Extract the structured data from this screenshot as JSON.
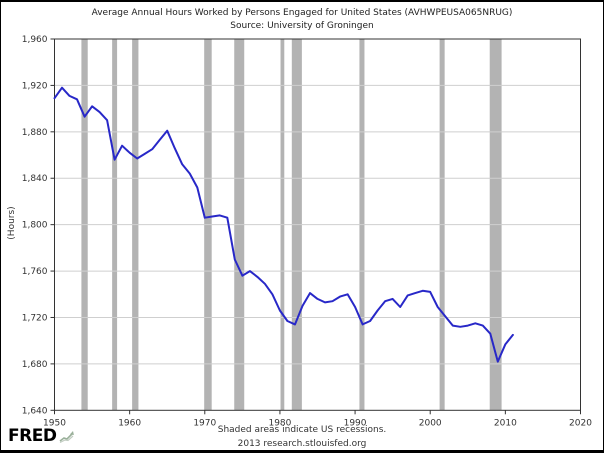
{
  "header": {
    "title": "Average Annual Hours Worked by Persons Engaged for United States (AVHWPEUSA065NRUG)",
    "source": "Source: University of Groningen"
  },
  "footer": {
    "note": "Shaded areas indicate US recessions.",
    "attribution": "2013 research.stlouisfed.org",
    "logo": "FRED",
    "logo_icon": "line-chart-icon"
  },
  "chart_data": {
    "type": "line",
    "title": "Average Annual Hours Worked by Persons Engaged for United States (AVHWPEUSA065NRUG)",
    "subtitle": "Source: University of Groningen",
    "xlabel": "",
    "ylabel": "(Hours)",
    "xlim": [
      1950,
      2020
    ],
    "ylim": [
      1640,
      1960
    ],
    "x_ticks": [
      1950,
      1960,
      1970,
      1980,
      1990,
      2000,
      2010,
      2020
    ],
    "y_ticks": [
      1640,
      1680,
      1720,
      1760,
      1800,
      1840,
      1880,
      1920,
      1960
    ],
    "grid": "horizontal",
    "legend_position": "none",
    "line_color": "#2828c8",
    "recession_color": "#b3b3b3",
    "gridline_color": "#cfcfcf",
    "frame_color": "#333333",
    "tick_label_color": "#333333",
    "recessions": [
      [
        1953.58,
        1954.42
      ],
      [
        1957.67,
        1958.33
      ],
      [
        1960.33,
        1961.17
      ],
      [
        1969.92,
        1970.92
      ],
      [
        1973.92,
        1975.25
      ],
      [
        1980.08,
        1980.58
      ],
      [
        1981.58,
        1982.92
      ],
      [
        1990.58,
        1991.25
      ],
      [
        2001.25,
        2001.92
      ],
      [
        2007.92,
        2009.5
      ]
    ],
    "series": [
      {
        "name": "AVHWPEUSA065NRUG",
        "x_start": 1950,
        "values": [
          1909,
          1918,
          1911,
          1908,
          1893,
          1902,
          1897,
          1890,
          1856,
          1868,
          1862,
          1857,
          1861,
          1865,
          1873,
          1881,
          1866,
          1852,
          1844,
          1832,
          1806,
          1807,
          1808,
          1806,
          1770,
          1756,
          1760,
          1755,
          1749,
          1740,
          1726,
          1717,
          1714,
          1730,
          1741,
          1736,
          1733,
          1734,
          1738,
          1740,
          1729,
          1714,
          1717,
          1726,
          1734,
          1736,
          1729,
          1739,
          1741,
          1743,
          1742,
          1729,
          1721,
          1713,
          1712,
          1713,
          1715,
          1713,
          1706,
          1682,
          1697,
          1705
        ]
      }
    ]
  }
}
